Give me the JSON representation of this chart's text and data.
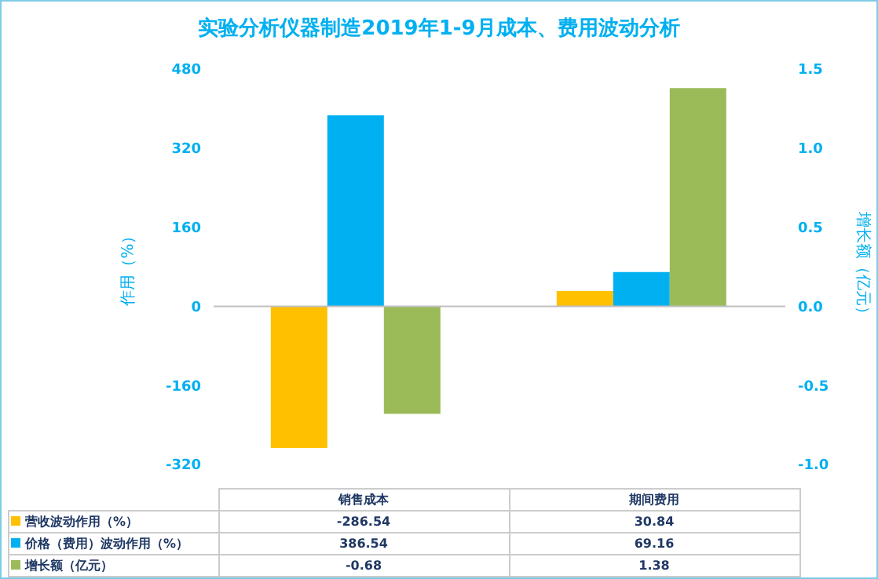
{
  "chart_data": {
    "type": "bar",
    "title": "实验分析仪器制造2019年1-9月成本、费用波动分析",
    "categories": [
      "销售成本",
      "期间费用"
    ],
    "series": [
      {
        "name": "营收波动作用（%）",
        "color": "#ffc000",
        "values": [
          -286.54,
          30.84
        ]
      },
      {
        "name": "价格（费用）波动作用（%）",
        "color": "#00b0f0",
        "values": [
          386.54,
          69.16
        ]
      },
      {
        "name": "增长额（亿元）",
        "color": "#9bbb59",
        "values": [
          -0.68,
          1.38
        ],
        "axis": "y2"
      }
    ],
    "ylabel": "作用（%）",
    "y2label": "增长额（亿元）",
    "ylim": [
      -320,
      480
    ],
    "yticks": [
      -320,
      -160,
      0,
      160,
      320,
      480
    ],
    "y2lim": [
      -1,
      1.5
    ],
    "y2ticks": [
      {
        "value": -1,
        "label": "-1.0"
      },
      {
        "value": -0.5,
        "label": "-0.5"
      },
      {
        "value": 0,
        "label": "0.0"
      },
      {
        "value": 0.5,
        "label": "0.5"
      },
      {
        "value": 1,
        "label": "1.0"
      },
      {
        "value": 1.5,
        "label": "1.5"
      }
    ],
    "ref_lines": [
      {
        "axis": "y",
        "value": 0,
        "color": "#bfbfbf"
      }
    ],
    "data_labels": true,
    "legend": "bottom",
    "grid": false
  }
}
